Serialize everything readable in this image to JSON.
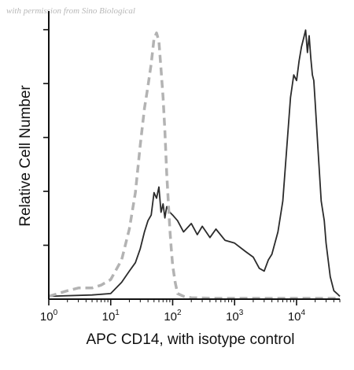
{
  "watermark": "with permission from Sino Biological",
  "chart_data": {
    "type": "line",
    "xlabel": "APC CD14, with isotype control",
    "ylabel": "Relative Cell Number",
    "x_scale": "log",
    "xlim": [
      1,
      50000
    ],
    "ylim": [
      0,
      100
    ],
    "x_ticks": [
      {
        "base": "10",
        "exp": "0",
        "value": 1
      },
      {
        "base": "10",
        "exp": "1",
        "value": 10
      },
      {
        "base": "10",
        "exp": "2",
        "value": 100
      },
      {
        "base": "10",
        "exp": "3",
        "value": 1000
      },
      {
        "base": "10",
        "exp": "4",
        "value": 10000
      }
    ],
    "grid": false,
    "legend": "none",
    "series": [
      {
        "style": "solid",
        "color": "#2b2b2b",
        "x": [
          1,
          5,
          10,
          15,
          20,
          25,
          30,
          35,
          40,
          45,
          50,
          55,
          60,
          65,
          70,
          75,
          80,
          90,
          100,
          120,
          150,
          200,
          250,
          300,
          400,
          500,
          700,
          1000,
          1500,
          2000,
          2500,
          3000,
          3500,
          4000,
          5000,
          6000,
          7000,
          8000,
          9000,
          10000,
          11000,
          12000,
          13000,
          14000,
          15000,
          16000,
          17000,
          18000,
          19000,
          20000,
          22000,
          25000,
          28000,
          30000,
          35000,
          40000,
          45000,
          50000
        ],
        "y": [
          1,
          1.5,
          2,
          6,
          10,
          13,
          18,
          24,
          28,
          30,
          38,
          36,
          40,
          31,
          34,
          29,
          33,
          31,
          30,
          28,
          24,
          27,
          23,
          26,
          22,
          25,
          21,
          20,
          17,
          15,
          11,
          10,
          14,
          16,
          24,
          35,
          55,
          72,
          80,
          78,
          85,
          90,
          93,
          96,
          88,
          94,
          86,
          80,
          78,
          70,
          55,
          35,
          28,
          20,
          8,
          3,
          2,
          1
        ]
      },
      {
        "style": "dashed",
        "color": "#b3b3b3",
        "x": [
          1,
          2,
          3,
          5,
          7,
          10,
          15,
          20,
          25,
          30,
          35,
          40,
          45,
          50,
          55,
          60,
          65,
          70,
          75,
          80,
          85,
          90,
          95,
          100,
          110,
          120,
          150,
          200,
          500,
          1000,
          5000,
          10000,
          50000
        ],
        "y": [
          1,
          3,
          4,
          4,
          5,
          7,
          14,
          25,
          38,
          55,
          68,
          76,
          84,
          93,
          95,
          92,
          82,
          72,
          60,
          45,
          35,
          25,
          18,
          12,
          6,
          2,
          1,
          0.5,
          0.3,
          0.3,
          0.3,
          0.3,
          0.3
        ]
      }
    ]
  }
}
